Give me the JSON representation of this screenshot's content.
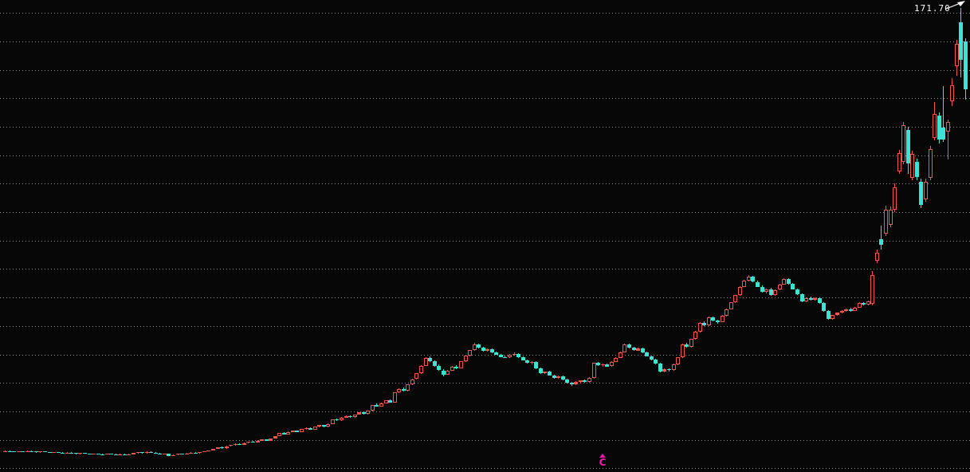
{
  "chart_data": {
    "type": "candlestick",
    "title": "",
    "high_label": "171.70",
    "grid": "horizontal-dotted",
    "legend": "none",
    "y_axis": {
      "min": 10,
      "max": 170,
      "grid_step": 10,
      "labels_visible": false
    },
    "x_axis": {
      "labels_visible": false
    },
    "colors": {
      "up": "#f4564e",
      "down": "#3ce2d2",
      "grid": "#8c8c8c",
      "label": "#ffffff",
      "marker": "#f619ae",
      "background": "#070707"
    },
    "style_convention": {
      "up": "hollow-red",
      "down": "solid-cyan"
    },
    "marker": {
      "glyph": "C",
      "symbol_above": "triangle-up",
      "candle_index": 135
    },
    "candles": [
      [
        15.8,
        16.2,
        15.7,
        16.1
      ],
      [
        16.1,
        16.2,
        15.8,
        15.9
      ],
      [
        15.9,
        16.1,
        15.6,
        15.7
      ],
      [
        15.7,
        16.1,
        15.6,
        16.0
      ],
      [
        16.0,
        16.1,
        15.7,
        15.8
      ],
      [
        15.8,
        16.2,
        15.7,
        16.1
      ],
      [
        16.1,
        16.2,
        15.8,
        15.9
      ],
      [
        15.9,
        16.0,
        15.5,
        15.6
      ],
      [
        15.6,
        16.0,
        15.5,
        15.9
      ],
      [
        15.9,
        16.0,
        15.6,
        15.7
      ],
      [
        15.7,
        15.8,
        15.3,
        15.4
      ],
      [
        15.4,
        15.8,
        15.3,
        15.7
      ],
      [
        15.7,
        15.8,
        15.4,
        15.5
      ],
      [
        15.5,
        15.6,
        15.1,
        15.2
      ],
      [
        15.2,
        15.6,
        15.1,
        15.5
      ],
      [
        15.5,
        15.6,
        15.2,
        15.3
      ],
      [
        15.3,
        15.4,
        14.9,
        15.0
      ],
      [
        15.0,
        15.4,
        14.9,
        15.3
      ],
      [
        15.3,
        15.4,
        15.0,
        15.1
      ],
      [
        15.1,
        15.2,
        14.7,
        14.8
      ],
      [
        14.8,
        15.2,
        14.7,
        15.1
      ],
      [
        15.1,
        15.2,
        14.8,
        14.9
      ],
      [
        14.9,
        15.0,
        14.7,
        14.8
      ],
      [
        14.8,
        15.1,
        14.7,
        15.0
      ],
      [
        15.0,
        15.1,
        14.8,
        14.9
      ],
      [
        14.9,
        15.0,
        14.6,
        14.7
      ],
      [
        14.7,
        15.0,
        14.6,
        14.9
      ],
      [
        14.9,
        15.0,
        14.7,
        14.8
      ],
      [
        14.8,
        15.0,
        14.6,
        14.9
      ],
      [
        14.9,
        15.5,
        14.8,
        15.4
      ],
      [
        15.4,
        15.7,
        15.2,
        15.6
      ],
      [
        15.6,
        15.8,
        15.2,
        15.3
      ],
      [
        15.3,
        15.9,
        15.2,
        15.8
      ],
      [
        15.8,
        15.9,
        15.4,
        15.5
      ],
      [
        15.5,
        15.6,
        15.1,
        15.2
      ],
      [
        15.2,
        15.3,
        14.8,
        14.9
      ],
      [
        14.9,
        15.2,
        14.7,
        15.1
      ],
      [
        15.1,
        15.2,
        14.3,
        14.4
      ],
      [
        14.4,
        14.8,
        14.3,
        14.7
      ],
      [
        14.7,
        15.1,
        14.6,
        15.0
      ],
      [
        15.0,
        15.2,
        14.7,
        14.8
      ],
      [
        14.8,
        15.3,
        14.7,
        15.2
      ],
      [
        15.2,
        15.6,
        15.1,
        15.5
      ],
      [
        15.5,
        15.7,
        15.2,
        15.3
      ],
      [
        15.3,
        15.8,
        15.2,
        15.7
      ],
      [
        15.7,
        16.1,
        15.6,
        16.0
      ],
      [
        16.0,
        16.4,
        15.9,
        16.3
      ],
      [
        16.3,
        16.9,
        16.2,
        16.8
      ],
      [
        16.8,
        17.4,
        16.7,
        17.3
      ],
      [
        17.3,
        17.6,
        16.9,
        17.0
      ],
      [
        17.0,
        17.9,
        16.9,
        17.8
      ],
      [
        17.8,
        18.3,
        17.6,
        18.2
      ],
      [
        18.2,
        18.7,
        18.0,
        18.6
      ],
      [
        18.6,
        18.8,
        18.1,
        18.2
      ],
      [
        18.2,
        19.0,
        18.1,
        18.9
      ],
      [
        18.9,
        19.4,
        18.8,
        19.3
      ],
      [
        19.3,
        19.5,
        18.9,
        19.0
      ],
      [
        19.0,
        19.8,
        18.9,
        19.7
      ],
      [
        19.7,
        20.2,
        19.5,
        20.1
      ],
      [
        20.1,
        20.3,
        19.6,
        19.7
      ],
      [
        19.7,
        20.6,
        19.6,
        20.5
      ],
      [
        20.5,
        21.4,
        20.4,
        21.3
      ],
      [
        21.3,
        22.5,
        21.2,
        22.4
      ],
      [
        22.4,
        22.7,
        21.8,
        21.9
      ],
      [
        21.9,
        22.9,
        21.8,
        22.8
      ],
      [
        22.8,
        23.3,
        22.6,
        23.2
      ],
      [
        23.2,
        23.4,
        22.7,
        22.8
      ],
      [
        22.8,
        23.8,
        22.7,
        23.7
      ],
      [
        23.7,
        24.3,
        23.5,
        24.2
      ],
      [
        24.2,
        24.4,
        23.5,
        23.6
      ],
      [
        23.6,
        24.7,
        23.5,
        24.6
      ],
      [
        24.6,
        25.2,
        24.4,
        25.1
      ],
      [
        25.1,
        25.3,
        24.5,
        24.6
      ],
      [
        24.6,
        25.7,
        24.5,
        25.6
      ],
      [
        25.6,
        27.3,
        25.5,
        27.2
      ],
      [
        27.2,
        27.5,
        26.7,
        26.8
      ],
      [
        26.8,
        27.9,
        26.7,
        27.8
      ],
      [
        27.8,
        28.5,
        27.6,
        28.4
      ],
      [
        28.4,
        28.7,
        27.8,
        27.9
      ],
      [
        27.9,
        29.0,
        27.8,
        28.9
      ],
      [
        28.9,
        29.7,
        28.8,
        29.6
      ],
      [
        29.6,
        29.9,
        28.9,
        29.0
      ],
      [
        29.0,
        30.3,
        28.9,
        30.2
      ],
      [
        30.2,
        32.3,
        30.1,
        32.2
      ],
      [
        32.2,
        32.7,
        31.6,
        31.7
      ],
      [
        31.7,
        33.0,
        31.6,
        32.9
      ],
      [
        32.9,
        34.0,
        32.7,
        33.9
      ],
      [
        33.9,
        34.3,
        33.1,
        33.2
      ],
      [
        33.2,
        36.8,
        33.1,
        36.7
      ],
      [
        36.7,
        38.0,
        36.5,
        37.9
      ],
      [
        37.9,
        38.3,
        37.1,
        37.2
      ],
      [
        37.2,
        39.5,
        37.1,
        39.4
      ],
      [
        39.4,
        41.4,
        39.2,
        41.3
      ],
      [
        41.3,
        43.4,
        41.1,
        43.3
      ],
      [
        43.3,
        46.1,
        43.1,
        46.0
      ],
      [
        46.0,
        49.0,
        45.8,
        48.7
      ],
      [
        48.7,
        49.2,
        47.3,
        47.5
      ],
      [
        47.5,
        47.9,
        45.8,
        46.0
      ],
      [
        46.0,
        46.4,
        44.3,
        44.4
      ],
      [
        44.4,
        44.8,
        42.2,
        42.9
      ],
      [
        42.9,
        44.5,
        42.7,
        44.4
      ],
      [
        44.4,
        46.0,
        44.2,
        45.8
      ],
      [
        45.8,
        46.2,
        44.9,
        45.1
      ],
      [
        45.1,
        47.7,
        45.0,
        47.5
      ],
      [
        47.5,
        49.7,
        47.3,
        49.5
      ],
      [
        49.5,
        51.6,
        49.3,
        51.5
      ],
      [
        51.5,
        54.1,
        51.3,
        53.5
      ],
      [
        53.5,
        53.9,
        52.1,
        52.3
      ],
      [
        52.3,
        52.7,
        51.1,
        51.3
      ],
      [
        51.3,
        52.2,
        51.0,
        51.8
      ],
      [
        51.8,
        52.1,
        50.5,
        50.7
      ],
      [
        50.7,
        51.0,
        49.7,
        49.9
      ],
      [
        49.9,
        50.2,
        48.9,
        49.1
      ],
      [
        49.1,
        49.7,
        48.7,
        49.0
      ],
      [
        49.0,
        50.1,
        48.8,
        49.9
      ],
      [
        49.9,
        50.6,
        49.6,
        50.1
      ],
      [
        50.1,
        50.3,
        48.8,
        49.0
      ],
      [
        49.0,
        49.3,
        47.8,
        48.0
      ],
      [
        48.0,
        48.3,
        46.8,
        47.0
      ],
      [
        47.0,
        47.6,
        46.4,
        47.4
      ],
      [
        47.4,
        47.7,
        44.9,
        45.1
      ],
      [
        45.1,
        45.5,
        43.2,
        43.4
      ],
      [
        43.4,
        44.1,
        43.0,
        43.9
      ],
      [
        43.9,
        44.2,
        42.5,
        42.7
      ],
      [
        42.7,
        43.0,
        41.6,
        41.8
      ],
      [
        41.8,
        42.5,
        41.5,
        42.3
      ],
      [
        42.3,
        42.6,
        40.9,
        41.1
      ],
      [
        41.1,
        41.4,
        39.9,
        40.1
      ],
      [
        40.1,
        40.4,
        39.0,
        39.5
      ],
      [
        39.5,
        40.5,
        39.3,
        40.3
      ],
      [
        40.3,
        41.0,
        39.7,
        40.8
      ],
      [
        40.8,
        41.1,
        40.0,
        40.2
      ],
      [
        40.2,
        41.9,
        40.1,
        41.7
      ],
      [
        41.7,
        47.2,
        41.5,
        47.1
      ],
      [
        47.1,
        47.4,
        46.0,
        46.2
      ],
      [
        46.2,
        46.7,
        45.7,
        46.5
      ],
      [
        46.5,
        46.9,
        45.6,
        45.8
      ],
      [
        45.8,
        47.6,
        45.7,
        47.4
      ],
      [
        47.4,
        49.0,
        47.2,
        48.8
      ],
      [
        48.8,
        51.0,
        48.6,
        50.8
      ],
      [
        50.8,
        53.9,
        50.6,
        53.5
      ],
      [
        53.5,
        53.8,
        52.1,
        52.3
      ],
      [
        52.3,
        52.6,
        51.2,
        51.4
      ],
      [
        51.4,
        52.4,
        51.2,
        52.1
      ],
      [
        52.1,
        52.3,
        50.5,
        50.7
      ],
      [
        50.7,
        51.0,
        49.2,
        49.4
      ],
      [
        49.4,
        49.7,
        47.9,
        48.1
      ],
      [
        48.1,
        48.4,
        46.5,
        46.7
      ],
      [
        46.7,
        47.0,
        43.6,
        44.0
      ],
      [
        44.0,
        45.0,
        43.8,
        44.8
      ],
      [
        44.8,
        45.1,
        44.1,
        44.5
      ],
      [
        44.5,
        46.7,
        44.3,
        46.5
      ],
      [
        46.5,
        49.1,
        46.3,
        48.9
      ],
      [
        48.9,
        53.7,
        48.7,
        53.5
      ],
      [
        53.5,
        54.1,
        52.4,
        52.6
      ],
      [
        52.6,
        55.6,
        52.4,
        55.4
      ],
      [
        55.4,
        58.2,
        55.2,
        58.0
      ],
      [
        58.0,
        61.3,
        57.8,
        61.1
      ],
      [
        61.1,
        61.6,
        60.0,
        60.1
      ],
      [
        60.1,
        63.2,
        60.0,
        63.0
      ],
      [
        63.0,
        63.4,
        61.7,
        61.9
      ],
      [
        61.9,
        62.3,
        60.9,
        61.3
      ],
      [
        61.3,
        63.8,
        61.2,
        63.6
      ],
      [
        63.6,
        66.1,
        63.4,
        65.9
      ],
      [
        65.9,
        68.4,
        65.7,
        68.3
      ],
      [
        68.3,
        71.0,
        68.1,
        70.8
      ],
      [
        70.8,
        74.0,
        70.6,
        73.8
      ],
      [
        73.8,
        76.1,
        73.6,
        75.9
      ],
      [
        75.9,
        77.9,
        75.7,
        77.3
      ],
      [
        77.3,
        77.6,
        75.3,
        75.5
      ],
      [
        75.5,
        75.8,
        73.6,
        73.8
      ],
      [
        73.8,
        74.2,
        71.6,
        72.0
      ],
      [
        72.0,
        73.1,
        71.5,
        72.9
      ],
      [
        72.9,
        73.3,
        70.6,
        70.9
      ],
      [
        70.9,
        72.8,
        70.7,
        72.7
      ],
      [
        72.7,
        74.8,
        72.5,
        74.6
      ],
      [
        74.6,
        76.9,
        74.4,
        76.5
      ],
      [
        76.5,
        76.8,
        74.5,
        74.7
      ],
      [
        74.7,
        75.0,
        72.7,
        72.9
      ],
      [
        72.9,
        73.2,
        71.0,
        71.2
      ],
      [
        71.2,
        71.4,
        68.3,
        68.6
      ],
      [
        68.6,
        70.0,
        68.4,
        69.9
      ],
      [
        69.9,
        70.2,
        68.9,
        69.1
      ],
      [
        69.1,
        70.1,
        68.8,
        69.7
      ],
      [
        69.7,
        70.0,
        67.8,
        68.0
      ],
      [
        68.0,
        68.4,
        65.0,
        65.2
      ],
      [
        65.2,
        65.5,
        62.1,
        62.5
      ],
      [
        62.5,
        63.9,
        62.3,
        63.8
      ],
      [
        63.8,
        64.8,
        63.5,
        64.6
      ],
      [
        64.6,
        65.6,
        64.3,
        65.3
      ],
      [
        65.3,
        66.1,
        64.9,
        65.9
      ],
      [
        65.9,
        66.3,
        65.1,
        65.3
      ],
      [
        65.3,
        66.7,
        65.2,
        66.5
      ],
      [
        66.5,
        68.3,
        66.3,
        68.1
      ],
      [
        68.1,
        68.4,
        67.2,
        67.4
      ],
      [
        67.4,
        68.8,
        67.2,
        68.6
      ],
      [
        67.8,
        79.3,
        67.2,
        77.9
      ],
      [
        82.9,
        86.8,
        82.1,
        85.7
      ],
      [
        90.5,
        95.2,
        86.8,
        88.5
      ],
      [
        92.4,
        102.2,
        91.6,
        100.8
      ],
      [
        95.5,
        102.0,
        94.7,
        100.8
      ],
      [
        100.8,
        110.1,
        100.0,
        108.7
      ],
      [
        114.3,
        121.8,
        113.4,
        120.7
      ],
      [
        117.6,
        131.7,
        116.8,
        130.5
      ],
      [
        128.9,
        130.0,
        113.4,
        117.1
      ],
      [
        112.0,
        121.6,
        111.2,
        120.4
      ],
      [
        117.6,
        118.8,
        111.2,
        112.3
      ],
      [
        110.6,
        111.8,
        101.4,
        102.5
      ],
      [
        104.5,
        111.8,
        103.6,
        110.6
      ],
      [
        112.0,
        123.3,
        111.2,
        122.1
      ],
      [
        126.1,
        138.7,
        125.2,
        134.5
      ],
      [
        133.9,
        135.0,
        124.1,
        125.5
      ],
      [
        129.7,
        144.3,
        124.6,
        125.5
      ],
      [
        128.3,
        132.5,
        118.5,
        131.7
      ],
      [
        138.9,
        147.1,
        137.3,
        144.5
      ],
      [
        151.3,
        160.5,
        147.9,
        159.1
      ],
      [
        166.7,
        171.7,
        147.3,
        153.5
      ],
      [
        159.9,
        161.1,
        139.5,
        143.1
      ]
    ]
  }
}
